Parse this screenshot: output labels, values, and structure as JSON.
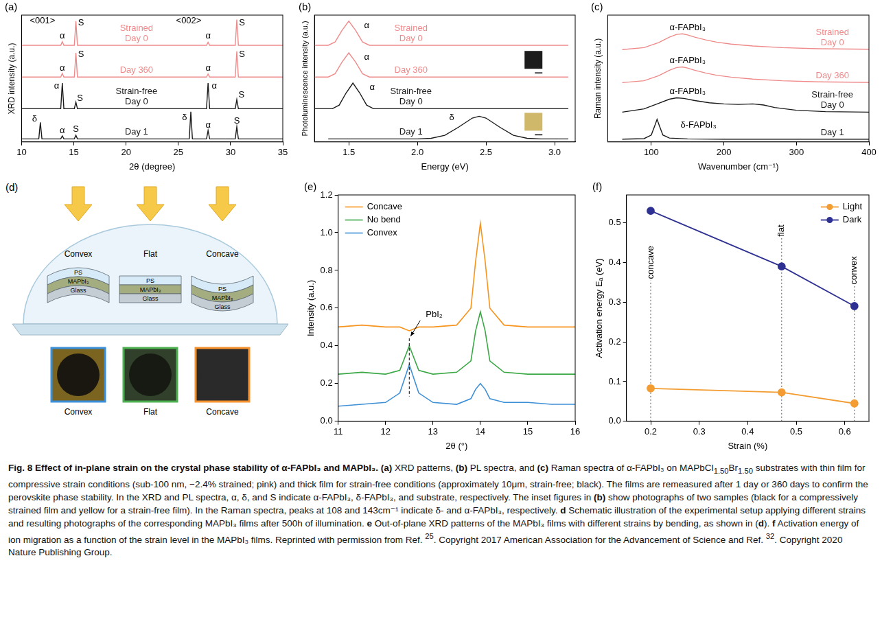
{
  "chart_data": [
    {
      "panel": "(a)",
      "type": "line",
      "x_label": "2θ (degree)",
      "y_label": "XRD intensity (a.u.)",
      "xlim": [
        10,
        35
      ],
      "xticks": [
        10,
        15,
        20,
        25,
        30,
        35
      ],
      "ylim": [
        0,
        4.2
      ],
      "tick_labels": "x",
      "grid": false,
      "series": [
        {
          "label": [
            "Strained",
            "Day 0"
          ],
          "color": "#ef8a8a",
          "x": [
            10,
            13.75,
            13.9,
            14.05,
            15.05,
            15.2,
            15.35,
            27.7,
            27.85,
            28.0,
            30.45,
            30.6,
            30.75,
            35
          ],
          "values": [
            3.2,
            3.2,
            3.32,
            3.2,
            3.2,
            4.0,
            3.2,
            3.2,
            3.3,
            3.2,
            3.2,
            4.05,
            3.2,
            3.2
          ]
        },
        {
          "label": [
            "Day 360"
          ],
          "color": "#ef8a8a",
          "x": [
            10,
            13.75,
            13.9,
            14.05,
            15.05,
            15.2,
            15.35,
            27.7,
            27.85,
            28.0,
            30.45,
            30.6,
            30.75,
            35
          ],
          "values": [
            2.15,
            2.15,
            2.27,
            2.15,
            2.15,
            2.95,
            2.15,
            2.15,
            2.25,
            2.15,
            2.15,
            3.0,
            2.15,
            2.15
          ]
        },
        {
          "label": [
            "Strain-free",
            "Day 0"
          ],
          "color": "#1a1a1a",
          "x": [
            10,
            13.75,
            13.9,
            14.05,
            15.05,
            15.2,
            15.35,
            27.7,
            27.85,
            28.0,
            30.45,
            30.6,
            30.75,
            35
          ],
          "values": [
            1.1,
            1.1,
            1.95,
            1.1,
            1.1,
            1.32,
            1.1,
            1.1,
            1.95,
            1.1,
            1.1,
            1.4,
            1.1,
            1.1
          ]
        },
        {
          "label": [
            "Day 1"
          ],
          "color": "#1a1a1a",
          "x": [
            10,
            11.65,
            11.8,
            11.95,
            13.75,
            13.9,
            14.05,
            15.05,
            15.2,
            15.35,
            26.05,
            26.2,
            26.35,
            27.7,
            27.85,
            28.0,
            30.45,
            30.6,
            30.75,
            35
          ],
          "values": [
            0.1,
            0.1,
            0.65,
            0.1,
            0.1,
            0.2,
            0.1,
            0.1,
            0.22,
            0.1,
            0.1,
            1.0,
            0.1,
            0.1,
            0.38,
            0.1,
            0.1,
            0.5,
            0.1,
            0.1
          ]
        }
      ],
      "annotations": [
        {
          "text": "<001>",
          "x": 12,
          "y": 4.0
        },
        {
          "text": "<002>",
          "x": 26,
          "y": 4.0
        },
        {
          "text": "α",
          "x": 13.9,
          "y": 3.5
        },
        {
          "text": "S",
          "x": 15.7,
          "y": 3.95
        },
        {
          "text": "α",
          "x": 27.85,
          "y": 3.5
        },
        {
          "text": "S",
          "x": 31.1,
          "y": 3.95
        },
        {
          "text": "α",
          "x": 13.9,
          "y": 2.45
        },
        {
          "text": "S",
          "x": 15.7,
          "y": 2.9
        },
        {
          "text": "α",
          "x": 27.85,
          "y": 2.45
        },
        {
          "text": "S",
          "x": 31.1,
          "y": 2.9
        },
        {
          "text": "α",
          "x": 13.35,
          "y": 1.85
        },
        {
          "text": "S",
          "x": 15.6,
          "y": 1.45
        },
        {
          "text": "α",
          "x": 28.45,
          "y": 1.85
        },
        {
          "text": "S",
          "x": 31.05,
          "y": 1.55
        },
        {
          "text": "δ",
          "x": 11.25,
          "y": 0.75
        },
        {
          "text": "α",
          "x": 13.9,
          "y": 0.38
        },
        {
          "text": "S",
          "x": 15.2,
          "y": 0.42
        },
        {
          "text": "δ",
          "x": 25.6,
          "y": 0.8
        },
        {
          "text": "α",
          "x": 27.85,
          "y": 0.55
        },
        {
          "text": "S",
          "x": 30.6,
          "y": 0.68
        }
      ]
    },
    {
      "panel": "(b)",
      "type": "line",
      "x_label": "Energy (eV)",
      "y_label": "Photoluminescence intensity (a.u.)",
      "xlim": [
        1.25,
        3.15
      ],
      "xticks": [
        1.5,
        {
          "value": 2,
          "label": "2.0"
        },
        2.5,
        {
          "value": 3,
          "label": "3.0"
        }
      ],
      "ylim": [
        0,
        4.2
      ],
      "tick_labels": "x",
      "grid": false,
      "series": [
        {
          "label": [
            "Strained",
            "Day 0"
          ],
          "color": "#ef8a8a",
          "x": [
            1.25,
            1.35,
            1.4,
            1.45,
            1.5,
            1.55,
            1.6,
            1.65,
            3.1
          ],
          "values": [
            3.2,
            3.2,
            3.31,
            3.69,
            4.0,
            3.69,
            3.31,
            3.2,
            3.2
          ]
        },
        {
          "label": [
            "Day 360"
          ],
          "color": "#ef8a8a",
          "x": [
            1.25,
            1.35,
            1.4,
            1.45,
            1.5,
            1.55,
            1.6,
            1.65,
            3.1
          ],
          "values": [
            2.15,
            2.15,
            2.26,
            2.64,
            2.95,
            2.64,
            2.26,
            2.15,
            2.15
          ]
        },
        {
          "label": [
            "Strain-free",
            "Day 0"
          ],
          "color": "#1a1a1a",
          "x": [
            1.25,
            1.38,
            1.43,
            1.48,
            1.53,
            1.58,
            1.63,
            1.68,
            3.1
          ],
          "values": [
            1.1,
            1.1,
            1.22,
            1.62,
            1.95,
            1.62,
            1.22,
            1.1,
            1.1
          ]
        },
        {
          "label": [
            "Day 1"
          ],
          "color": "#1a1a1a",
          "x": [
            1.35,
            2.0,
            2.1,
            2.2,
            2.3,
            2.4,
            2.45,
            2.5,
            2.6,
            2.7,
            2.8,
            2.9,
            3.1
          ],
          "values": [
            0.1,
            0.1,
            0.12,
            0.22,
            0.49,
            0.79,
            0.85,
            0.79,
            0.49,
            0.22,
            0.12,
            0.1,
            0.1
          ]
        }
      ],
      "annotations": [
        {
          "text": "α",
          "x": 1.63,
          "y": 3.85
        },
        {
          "text": "α",
          "x": 1.63,
          "y": 2.8
        },
        {
          "text": "α",
          "x": 1.67,
          "y": 1.8
        },
        {
          "text": "δ",
          "x": 2.25,
          "y": 0.8
        }
      ]
    },
    {
      "panel": "(c)",
      "type": "line",
      "x_label": "Wavenumber (cm⁻¹)",
      "y_label": "Raman intensity (a.u.)",
      "xlim": [
        40,
        400
      ],
      "xticks": [
        100,
        200,
        300,
        400
      ],
      "ylim": [
        0,
        4.6
      ],
      "tick_labels": "x",
      "grid": false,
      "series": [
        {
          "label": [
            "Strained",
            "Day 0"
          ],
          "color": "#ef8a8a",
          "x": [
            60,
            90,
            110,
            125,
            135,
            143,
            150,
            160,
            175,
            190,
            210,
            240,
            280,
            330,
            400
          ],
          "values": [
            3.35,
            3.42,
            3.6,
            3.8,
            3.9,
            3.92,
            3.88,
            3.8,
            3.7,
            3.62,
            3.55,
            3.48,
            3.42,
            3.38,
            3.36
          ]
        },
        {
          "label": [
            "Day 360"
          ],
          "color": "#ef8a8a",
          "x": [
            60,
            90,
            110,
            125,
            135,
            143,
            150,
            160,
            175,
            190,
            210,
            240,
            280,
            330,
            400
          ],
          "values": [
            2.15,
            2.22,
            2.4,
            2.6,
            2.7,
            2.72,
            2.68,
            2.6,
            2.5,
            2.42,
            2.35,
            2.28,
            2.22,
            2.18,
            2.16
          ]
        },
        {
          "label": [
            "Strain-free",
            "Day 0"
          ],
          "color": "#1a1a1a",
          "x": [
            60,
            90,
            110,
            125,
            135,
            145,
            160,
            180,
            200,
            220,
            240,
            255,
            270,
            300,
            340,
            400
          ],
          "values": [
            1.08,
            1.2,
            1.4,
            1.55,
            1.6,
            1.58,
            1.5,
            1.42,
            1.38,
            1.36,
            1.38,
            1.34,
            1.25,
            1.15,
            1.1,
            1.08
          ]
        },
        {
          "label": [
            "Day 1"
          ],
          "color": "#1a1a1a",
          "x": [
            60,
            90,
            100,
            105,
            108,
            111,
            116,
            125,
            150,
            200,
            400
          ],
          "values": [
            0.1,
            0.12,
            0.25,
            0.6,
            0.82,
            0.6,
            0.25,
            0.14,
            0.11,
            0.1,
            0.1
          ]
        }
      ],
      "annotations": [
        {
          "text": "α-FAPbI₃",
          "x": 150,
          "y": 4.15
        },
        {
          "text": "α-FAPbI₃",
          "x": 150,
          "y": 2.95
        },
        {
          "text": "α-FAPbI₃",
          "x": 150,
          "y": 1.83
        },
        {
          "text": "δ-FAPbI₃",
          "x": 165,
          "y": 0.6
        }
      ]
    },
    {
      "panel": "(e)",
      "type": "line",
      "x_label": "2θ (°)",
      "y_label": "Intensity (a.u.)",
      "xlim": [
        11,
        16
      ],
      "xticks": [
        11,
        12,
        13,
        14,
        15,
        16
      ],
      "ylim": [
        0,
        1.2
      ],
      "yticks": [
        {
          "value": 0,
          "label": "0.0"
        },
        0.2,
        0.4,
        0.6,
        0.8,
        {
          "value": 1,
          "label": "1.0"
        },
        1.2
      ],
      "grid": false,
      "legend": "top-left",
      "series": [
        {
          "name": "Concave",
          "color": "#f7941d",
          "x": [
            11,
            11.5,
            12,
            12.3,
            12.5,
            12.7,
            13,
            13.5,
            13.8,
            13.9,
            14.0,
            14.1,
            14.2,
            14.5,
            15,
            15.5,
            16
          ],
          "values": [
            0.5,
            0.51,
            0.5,
            0.5,
            0.48,
            0.5,
            0.5,
            0.51,
            0.6,
            0.85,
            1.05,
            0.85,
            0.6,
            0.51,
            0.5,
            0.5,
            0.5
          ]
        },
        {
          "name": "No bend",
          "color": "#3aa844",
          "x": [
            11,
            11.5,
            12,
            12.3,
            12.5,
            12.7,
            13,
            13.5,
            13.8,
            13.9,
            14.0,
            14.1,
            14.2,
            14.5,
            15,
            15.5,
            16
          ],
          "values": [
            0.25,
            0.26,
            0.25,
            0.27,
            0.4,
            0.27,
            0.25,
            0.26,
            0.32,
            0.48,
            0.58,
            0.48,
            0.32,
            0.26,
            0.25,
            0.25,
            0.25
          ]
        },
        {
          "name": "Convex",
          "color": "#3d8fd6",
          "x": [
            11,
            11.5,
            12,
            12.3,
            12.5,
            12.7,
            13,
            13.5,
            13.8,
            13.9,
            14.0,
            14.1,
            14.2,
            14.5,
            15,
            15.5,
            16
          ],
          "values": [
            0.08,
            0.09,
            0.1,
            0.15,
            0.3,
            0.15,
            0.1,
            0.09,
            0.12,
            0.17,
            0.2,
            0.17,
            0.12,
            0.1,
            0.1,
            0.09,
            0.09
          ]
        }
      ],
      "annotations": [
        {
          "text": "PbI₂",
          "x": 12.5,
          "y": 0.44
        }
      ]
    },
    {
      "panel": "(f)",
      "type": "line",
      "x_label": "Strain (%)",
      "y_label": "Activation energy Eₐ (eV)",
      "xlim": [
        0.15,
        0.65
      ],
      "xticks": [
        0.2,
        0.3,
        0.4,
        0.5,
        0.6
      ],
      "ylim": [
        0,
        0.57
      ],
      "yticks": [
        {
          "value": 0,
          "label": "0.0"
        },
        0.1,
        0.2,
        0.3,
        0.4,
        0.5
      ],
      "grid": false,
      "legend": "top-right",
      "series": [
        {
          "name": "Light",
          "color": "#f39c32",
          "marker": "circle",
          "x": [
            0.2,
            0.47,
            0.62
          ],
          "values": [
            0.083,
            0.073,
            0.045
          ]
        },
        {
          "name": "Dark",
          "color": "#2e3192",
          "marker": "circle",
          "x": [
            0.2,
            0.47,
            0.62
          ],
          "values": [
            0.53,
            0.39,
            0.29
          ]
        }
      ],
      "annotations": [
        {
          "text": "concave",
          "x": 0.2,
          "y": 0.4
        },
        {
          "text": "flat",
          "x": 0.47,
          "y": 0.48
        },
        {
          "text": "convex",
          "x": 0.62,
          "y": 0.38
        }
      ]
    }
  ],
  "diagram": {
    "panel": "(d)",
    "samples": [
      "Convex",
      "Flat",
      "Concave"
    ],
    "layers": [
      "PS",
      "MAPbI₃",
      "Glass"
    ],
    "photo_captions": [
      "Convex",
      "Flat",
      "Concave"
    ]
  },
  "caption": [
    {
      "bold": "Fig. 8 Effect of in-plane strain on the crystal phase stability of α-FAPbI₃ and MAPbI₃. (a)"
    },
    {
      "text": " XRD patterns, "
    },
    {
      "bold": "(b)"
    },
    {
      "text": " PL spectra, and "
    },
    {
      "bold": "(c)"
    },
    {
      "text": " Raman spectra of α-FAPbI₃ on MAPbCl"
    },
    {
      "sub": "1.50"
    },
    {
      "text": "Br"
    },
    {
      "sub": "1.50"
    },
    {
      "text": " substrates with thin film for compressive strain conditions (sub-100 nm, −2.4% strained; pink) and thick film for strain-free conditions (approximately 10μm, strain-free; black). The films are remeasured after 1 day or 360 days to confirm the perovskite phase stability. In the XRD and PL spectra, α, δ, and S indicate α-FAPbI₃, δ-FAPbI₃, and substrate, respectively. The inset figures in "
    },
    {
      "bold": "(b)"
    },
    {
      "text": " show photographs of two samples (black for a compressively strained film and yellow for a strain-free film). In the Raman spectra, peaks at 108 and 143cm⁻¹ indicate δ- and α-FAPbI₃, respectively. "
    },
    {
      "bold": "d"
    },
    {
      "text": " Schematic illustration of the experimental setup applying different strains and resulting photographs of the corresponding MAPbI₃ films after 500h of illumination. "
    },
    {
      "bold": "e"
    },
    {
      "text": " Out-of-plane XRD patterns of the MAPbI₃ films with different strains by bending, as shown in ("
    },
    {
      "bold": "d"
    },
    {
      "text": "). "
    },
    {
      "bold": "f"
    },
    {
      "text": " Activation energy of ion migration as a function of the strain level in the MAPbI₃ films. Reprinted with permission from Ref. "
    },
    {
      "sup": "25"
    },
    {
      "text": ". Copyright 2017 American Association for the Advancement of Science and Ref. "
    },
    {
      "sup": "32"
    },
    {
      "text": ". Copyright 2020 Nature Publishing Group."
    }
  ]
}
